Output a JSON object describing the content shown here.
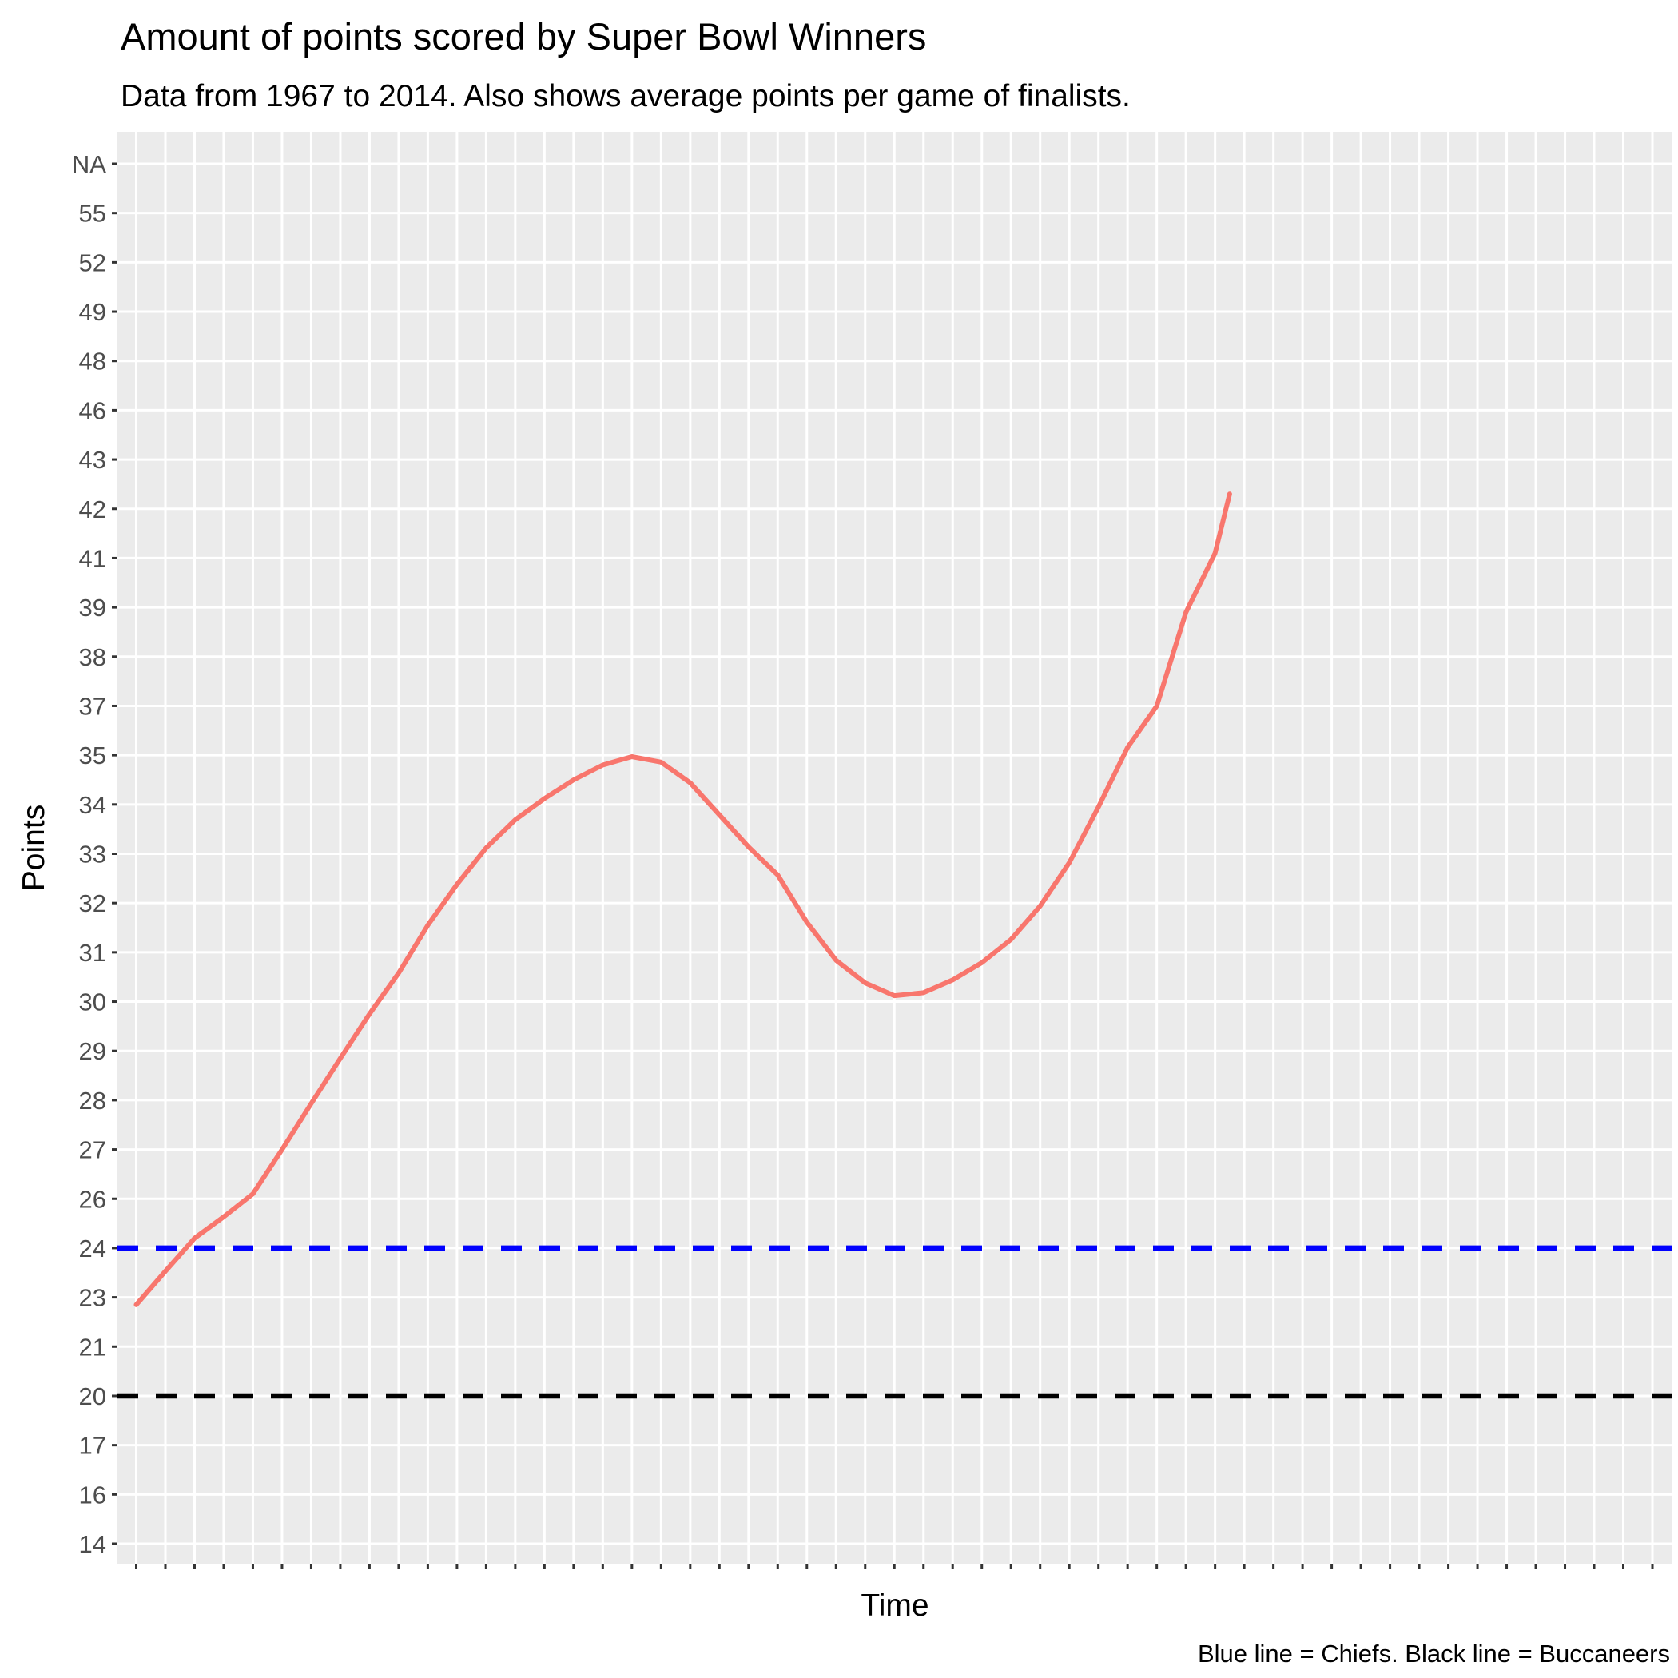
{
  "chart_data": {
    "type": "line",
    "title": "Amount of points scored by Super Bowl Winners",
    "subtitle": "Data from 1967 to 2014. Also shows average points per game of finalists.",
    "xlabel": "Time",
    "ylabel": "Points",
    "caption": "Blue line = Chiefs.  Black line = Buccaneers",
    "y_ticks": [
      "14",
      "16",
      "17",
      "20",
      "21",
      "23",
      "24",
      "26",
      "27",
      "28",
      "29",
      "30",
      "31",
      "32",
      "33",
      "34",
      "35",
      "37",
      "38",
      "39",
      "41",
      "42",
      "43",
      "46",
      "48",
      "49",
      "52",
      "55",
      "NA"
    ],
    "x_categories": 53,
    "series": [
      {
        "color": "#F8766D",
        "points": [
          [
            1,
            22.7
          ],
          [
            3,
            23.53
          ],
          [
            5,
            24.4
          ],
          [
            7,
            25.27
          ],
          [
            9,
            26.1
          ],
          [
            11,
            27.0
          ],
          [
            13,
            27.93
          ],
          [
            15,
            28.85
          ],
          [
            17,
            29.75
          ],
          [
            19,
            30.58
          ],
          [
            21,
            31.55
          ],
          [
            23,
            32.38
          ],
          [
            25,
            33.12
          ],
          [
            27,
            33.69
          ],
          [
            29,
            34.12
          ],
          [
            31,
            34.5
          ],
          [
            33,
            34.8
          ],
          [
            35,
            34.97
          ],
          [
            37,
            34.86
          ],
          [
            39,
            34.44
          ],
          [
            41,
            33.79
          ],
          [
            43,
            33.14
          ],
          [
            45,
            32.57
          ],
          [
            47,
            31.61
          ],
          [
            49,
            30.84
          ],
          [
            51,
            30.38
          ],
          [
            53,
            30.12
          ],
          [
            55,
            30.18
          ],
          [
            57,
            30.44
          ],
          [
            59,
            30.79
          ],
          [
            61,
            31.26
          ],
          [
            63,
            31.94
          ],
          [
            65,
            32.82
          ],
          [
            67,
            33.95
          ],
          [
            69,
            35.32
          ],
          [
            71,
            37.0
          ],
          [
            73,
            38.9
          ],
          [
            75,
            41.1
          ],
          [
            76,
            42.3
          ]
        ]
      }
    ],
    "reference_lines": [
      {
        "value": "24",
        "color": "#0000FF",
        "style": "dashed"
      },
      {
        "value": "20",
        "color": "#000000",
        "style": "dashed"
      }
    ],
    "grid": true,
    "legend": "none"
  }
}
